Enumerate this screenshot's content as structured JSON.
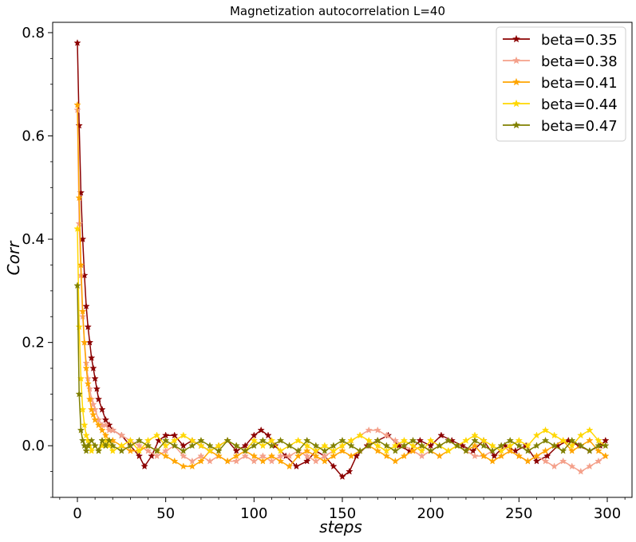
{
  "chart_data": {
    "type": "line",
    "title": "Magnetization autocorrelation L=40",
    "xlabel": "steps",
    "ylabel": "Corr",
    "xlim": [
      -14,
      314
    ],
    "ylim": [
      -0.1,
      0.82
    ],
    "xticks": [
      0,
      50,
      100,
      150,
      200,
      250,
      300
    ],
    "xtick_labels": [
      "0",
      "50",
      "100",
      "150",
      "200",
      "250",
      "300"
    ],
    "yticks": [
      0.0,
      0.2,
      0.4,
      0.6,
      0.8
    ],
    "ytick_labels": [
      "0.0",
      "0.2",
      "0.4",
      "0.6",
      "0.8"
    ],
    "grid": false,
    "legend_position": "top-right",
    "marker": "star",
    "series": [
      {
        "name": "beta=0.35",
        "color": "#8b0000",
        "x": [
          0,
          1,
          2,
          3,
          4,
          5,
          6,
          7,
          8,
          9,
          10,
          11,
          12,
          14,
          16,
          18,
          20,
          25,
          30,
          35,
          38,
          42,
          46,
          50,
          55,
          60,
          65,
          70,
          75,
          80,
          85,
          90,
          95,
          100,
          104,
          108,
          112,
          118,
          124,
          130,
          135,
          140,
          145,
          150,
          154,
          158,
          164,
          170,
          176,
          182,
          188,
          194,
          200,
          206,
          212,
          218,
          224,
          230,
          236,
          242,
          248,
          254,
          260,
          266,
          272,
          278,
          284,
          290,
          296,
          299
        ],
        "y": [
          0.78,
          0.62,
          0.49,
          0.4,
          0.33,
          0.27,
          0.23,
          0.2,
          0.17,
          0.15,
          0.13,
          0.11,
          0.09,
          0.07,
          0.05,
          0.04,
          0.03,
          0.02,
          0.0,
          -0.02,
          -0.04,
          -0.02,
          0.01,
          0.02,
          0.02,
          0.0,
          0.01,
          0.0,
          -0.01,
          0.0,
          0.01,
          -0.01,
          0.0,
          0.02,
          0.03,
          0.02,
          0.0,
          -0.02,
          -0.04,
          -0.03,
          -0.01,
          -0.02,
          -0.04,
          -0.06,
          -0.05,
          -0.02,
          0.0,
          0.01,
          0.02,
          0.0,
          -0.01,
          0.01,
          0.0,
          0.02,
          0.01,
          0.0,
          -0.01,
          0.01,
          -0.02,
          0.0,
          -0.01,
          0.0,
          -0.03,
          -0.02,
          0.0,
          0.01,
          0.0,
          -0.01,
          0.0,
          0.01
        ]
      },
      {
        "name": "beta=0.38",
        "color": "#f4a08a",
        "x": [
          0,
          1,
          2,
          3,
          4,
          5,
          6,
          7,
          8,
          9,
          10,
          12,
          14,
          16,
          18,
          20,
          25,
          30,
          35,
          40,
          45,
          50,
          55,
          60,
          65,
          70,
          75,
          80,
          85,
          90,
          95,
          100,
          105,
          110,
          115,
          120,
          125,
          130,
          135,
          140,
          145,
          150,
          155,
          160,
          165,
          170,
          175,
          180,
          185,
          190,
          195,
          200,
          205,
          210,
          215,
          220,
          225,
          230,
          235,
          240,
          245,
          250,
          255,
          260,
          265,
          270,
          275,
          280,
          285,
          290,
          295,
          299
        ],
        "y": [
          0.65,
          0.43,
          0.33,
          0.25,
          0.2,
          0.16,
          0.13,
          0.11,
          0.09,
          0.08,
          0.07,
          0.05,
          0.04,
          0.04,
          0.03,
          0.03,
          0.02,
          0.01,
          0.0,
          -0.01,
          -0.02,
          -0.01,
          0.0,
          -0.02,
          -0.03,
          -0.02,
          -0.03,
          -0.02,
          -0.03,
          -0.03,
          -0.02,
          -0.03,
          -0.02,
          -0.03,
          -0.02,
          -0.02,
          -0.01,
          -0.02,
          -0.03,
          -0.02,
          -0.01,
          0.0,
          0.01,
          0.02,
          0.03,
          0.03,
          0.02,
          0.01,
          0.0,
          -0.01,
          -0.02,
          -0.01,
          0.0,
          0.01,
          0.0,
          -0.01,
          -0.02,
          -0.02,
          -0.01,
          0.0,
          -0.01,
          -0.02,
          -0.03,
          -0.02,
          -0.03,
          -0.04,
          -0.03,
          -0.04,
          -0.05,
          -0.04,
          -0.03,
          -0.02
        ]
      },
      {
        "name": "beta=0.41",
        "color": "#ffa500",
        "x": [
          0,
          1,
          2,
          3,
          4,
          5,
          6,
          7,
          8,
          9,
          10,
          12,
          14,
          16,
          18,
          20,
          25,
          30,
          35,
          40,
          45,
          50,
          55,
          60,
          65,
          70,
          75,
          80,
          85,
          90,
          95,
          100,
          105,
          110,
          115,
          120,
          125,
          130,
          135,
          140,
          145,
          150,
          155,
          160,
          165,
          170,
          175,
          180,
          185,
          190,
          195,
          200,
          205,
          210,
          215,
          220,
          225,
          230,
          235,
          240,
          245,
          250,
          255,
          260,
          265,
          270,
          275,
          280,
          285,
          290,
          295,
          299
        ],
        "y": [
          0.66,
          0.48,
          0.35,
          0.26,
          0.2,
          0.15,
          0.12,
          0.09,
          0.07,
          0.06,
          0.05,
          0.04,
          0.03,
          0.02,
          0.01,
          0.01,
          0.0,
          -0.01,
          -0.01,
          0.0,
          -0.01,
          -0.02,
          -0.03,
          -0.04,
          -0.04,
          -0.03,
          -0.01,
          -0.02,
          -0.03,
          -0.02,
          -0.01,
          -0.02,
          -0.03,
          -0.02,
          -0.03,
          -0.04,
          -0.02,
          -0.01,
          -0.02,
          -0.03,
          -0.02,
          -0.01,
          -0.02,
          -0.01,
          0.0,
          -0.01,
          -0.02,
          -0.03,
          -0.02,
          -0.01,
          0.0,
          -0.01,
          -0.02,
          -0.01,
          0.0,
          -0.01,
          0.0,
          -0.02,
          -0.03,
          -0.02,
          -0.01,
          -0.02,
          -0.03,
          -0.02,
          -0.01,
          0.0,
          0.01,
          -0.01,
          0.0,
          0.01,
          -0.01,
          -0.02
        ]
      },
      {
        "name": "beta=0.44",
        "color": "#ffd700",
        "x": [
          0,
          1,
          2,
          3,
          4,
          5,
          6,
          7,
          8,
          10,
          12,
          14,
          16,
          18,
          20,
          25,
          30,
          35,
          40,
          45,
          50,
          55,
          60,
          65,
          70,
          75,
          80,
          85,
          90,
          95,
          100,
          105,
          110,
          115,
          120,
          125,
          130,
          135,
          140,
          145,
          150,
          155,
          160,
          165,
          170,
          175,
          180,
          185,
          190,
          195,
          200,
          205,
          210,
          215,
          220,
          225,
          230,
          235,
          240,
          245,
          250,
          255,
          260,
          265,
          270,
          275,
          280,
          285,
          290,
          295,
          299
        ],
        "y": [
          0.42,
          0.23,
          0.13,
          0.07,
          0.04,
          0.02,
          0.01,
          0.0,
          -0.01,
          0.0,
          -0.01,
          0.0,
          0.01,
          0.0,
          -0.01,
          0.0,
          0.01,
          -0.01,
          0.01,
          0.02,
          0.0,
          0.01,
          0.02,
          0.01,
          0.0,
          -0.01,
          0.0,
          0.01,
          0.0,
          -0.01,
          0.01,
          0.0,
          0.01,
          -0.01,
          0.0,
          0.01,
          0.0,
          -0.01,
          0.0,
          -0.01,
          0.0,
          0.01,
          0.02,
          0.01,
          0.0,
          -0.01,
          0.0,
          0.01,
          0.0,
          -0.01,
          0.01,
          0.0,
          -0.01,
          0.0,
          0.01,
          0.02,
          0.01,
          0.0,
          -0.01,
          0.0,
          0.01,
          0.0,
          0.02,
          0.03,
          0.02,
          0.01,
          0.0,
          0.02,
          0.03,
          0.01,
          0.0
        ]
      },
      {
        "name": "beta=0.47",
        "color": "#808000",
        "x": [
          0,
          1,
          2,
          3,
          4,
          5,
          6,
          8,
          10,
          12,
          14,
          16,
          18,
          20,
          25,
          30,
          35,
          40,
          45,
          50,
          55,
          60,
          65,
          70,
          75,
          80,
          85,
          90,
          95,
          100,
          105,
          110,
          115,
          120,
          125,
          130,
          135,
          140,
          145,
          150,
          155,
          160,
          165,
          170,
          175,
          180,
          185,
          190,
          195,
          200,
          205,
          210,
          215,
          220,
          225,
          230,
          235,
          240,
          245,
          250,
          255,
          260,
          265,
          270,
          275,
          280,
          285,
          290,
          295,
          299
        ],
        "y": [
          0.31,
          0.1,
          0.03,
          0.01,
          0.0,
          -0.01,
          0.0,
          0.01,
          0.0,
          -0.01,
          0.01,
          0.0,
          0.01,
          0.0,
          -0.01,
          0.0,
          0.01,
          0.0,
          -0.01,
          0.01,
          0.0,
          -0.01,
          0.0,
          0.01,
          0.0,
          -0.01,
          0.01,
          0.0,
          -0.01,
          0.0,
          0.01,
          0.0,
          0.01,
          0.0,
          -0.01,
          0.01,
          0.0,
          -0.01,
          0.0,
          0.01,
          0.0,
          -0.01,
          0.0,
          0.01,
          0.0,
          -0.01,
          0.0,
          0.01,
          0.0,
          -0.01,
          0.0,
          0.01,
          0.0,
          -0.01,
          0.01,
          0.0,
          -0.01,
          0.0,
          0.01,
          0.0,
          -0.01,
          0.0,
          0.01,
          0.0,
          -0.01,
          0.01,
          0.0,
          -0.01,
          0.0,
          0.0
        ]
      }
    ]
  }
}
